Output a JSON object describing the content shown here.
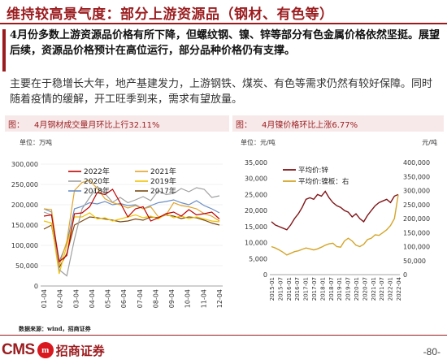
{
  "header": {
    "title": "维持较高景气度：部分上游资源品（钢材、有色等）"
  },
  "body": {
    "para1": "4月份多数上游资源品价格有所下降，但螺纹钢、镍、锌等部分有色金属价格依然坚挺。展望后续，资源品价格预计在高位运行，部分品种价格仍有支撑。",
    "para2": "主要在于稳增长大年，地产基建发力，上游钢铁、煤炭、有色等需求仍然有较好保障。同时随着疫情的缓解，开工旺季到来，需求有望放量。"
  },
  "colors": {
    "accent": "#9b1c1f",
    "panel_bg": "#f7e9e9"
  },
  "charts": [
    {
      "fig_label": "图：",
      "title": "4月钢材成交量月环比上行32.11%",
      "chart_data": {
        "type": "line",
        "unit": "单位：万吨",
        "ylim": [
          0,
          300000
        ],
        "yticks": [
          "0",
          "50,000",
          "100,000",
          "150,000",
          "200,000",
          "250,000",
          "300,000"
        ],
        "xticks": [
          "01-04",
          "02-04",
          "03-04",
          "04-04",
          "05-04",
          "06-04",
          "07-04",
          "08-04",
          "09-04",
          "10-04",
          "11-04",
          "12-04"
        ],
        "series": [
          {
            "name": "2022年",
            "color": "#c00000",
            "values": [
              172000,
              175000,
              60000,
              75000,
              178000,
              180000,
              195000,
              230000,
              225000,
              238000,
              205000,
              170000,
              190000,
              195000,
              160000,
              168000,
              178000,
              182000,
              172000,
              188000,
              175000,
              178000,
              182000,
              165000
            ]
          },
          {
            "name": "2021年",
            "color": "#e2a42b",
            "values": [
              190000,
              188000,
              50000,
              110000,
              235000,
              255000,
              260000,
              240000,
              215000,
              205000,
              200000,
              192000,
              198000,
              190000,
              195000,
              170000,
              175000,
              205000,
              198000,
              195000,
              190000,
              178000,
              172000,
              160000
            ]
          },
          {
            "name": "2020年",
            "color": "#a0a0a0",
            "values": [
              182000,
              175000,
              40000,
              25000,
              115000,
              190000,
              218000,
              245000,
              228000,
              206000,
              218000,
              205000,
              212000,
              220000,
              210000,
              235000,
              225000,
              228000,
              240000,
              232000,
              242000,
              238000,
              218000,
              222000
            ]
          },
          {
            "name": "2019年",
            "color": "#f2c200",
            "values": [
              160000,
              155000,
              30000,
              100000,
              170000,
              170000,
              180000,
              165000,
              168000,
              160000,
              165000,
              170000,
              175000,
              168000,
              172000,
              165000,
              178000,
              168000,
              172000,
              166000,
              170000,
              165000,
              160000,
              158000
            ]
          },
          {
            "name": "2018年",
            "color": "#6b8fc6",
            "values": [
              190000,
              182000,
              60000,
              105000,
              190000,
              196000,
              205000,
              202000,
              208000,
              200000,
              203000,
              198000,
              200000,
              190000,
              198000,
              205000,
              208000,
              212000,
              205000,
              200000,
              210000,
              198000,
              190000,
              180000
            ]
          },
          {
            "name": "2017年",
            "color": "#7a4a14",
            "values": [
              140000,
              150000,
              45000,
              80000,
              150000,
              160000,
              170000,
              168000,
              165000,
              162000,
              158000,
              160000,
              165000,
              162000,
              170000,
              168000,
              175000,
              172000,
              166000,
              170000,
              168000,
              162000,
              155000,
              150000
            ]
          }
        ]
      }
    },
    {
      "fig_label": "图：",
      "title": "4月镍价格环比上涨6.77%",
      "chart_data": {
        "type": "line",
        "unit_left": "单位：元/吨",
        "unit_right": "元/吨",
        "ylim_left": [
          0,
          35000
        ],
        "ylim_right": [
          0,
          400000
        ],
        "yticks_left": [
          "0",
          "5,000",
          "10,000",
          "15,000",
          "20,000",
          "25,000",
          "30,000",
          "35,000"
        ],
        "yticks_right": [
          "0",
          "50,000",
          "100,000",
          "150,000",
          "200,000",
          "250,000",
          "300,000",
          "350,000",
          "400,000"
        ],
        "xticks": [
          "2015-01",
          "2015-07",
          "2016-01",
          "2016-07",
          "2017-01",
          "2017-07",
          "2018-01",
          "2018-07",
          "2019-01",
          "2019-07",
          "2020-01",
          "2020-07",
          "2021-01",
          "2021-07",
          "2022-01",
          "2022-04"
        ],
        "series": [
          {
            "name": "平均价:锌",
            "axis": "left",
            "color": "#7f1518",
            "values": [
              16500,
              15500,
              15000,
              14500,
              14000,
              15500,
              17500,
              19000,
              21000,
              23500,
              24000,
              23500,
              25000,
              24500,
              26000,
              24000,
              22500,
              21500,
              21000,
              20000,
              19500,
              18000,
              19000,
              17500,
              16500,
              18500,
              20000,
              21500,
              22500,
              23000,
              23500,
              22500,
              24500,
              25000
            ]
          },
          {
            "name": "平均价:镍板：右",
            "axis": "right",
            "color": "#d4a52a",
            "values": [
              100000,
              95000,
              88000,
              80000,
              70000,
              76000,
              82000,
              85000,
              90000,
              95000,
              92000,
              88000,
              92000,
              98000,
              105000,
              110000,
              112000,
              100000,
              98000,
              120000,
              130000,
              120000,
              105000,
              100000,
              108000,
              125000,
              130000,
              142000,
              140000,
              150000,
              160000,
              175000,
              200000,
              285000
            ]
          }
        ]
      }
    }
  ],
  "footer": {
    "source": "数据来源：wind，招商证券",
    "logo_latin": "CMS",
    "logo_badge": "m",
    "logo_cn": "招商证券",
    "page": "-80-"
  }
}
